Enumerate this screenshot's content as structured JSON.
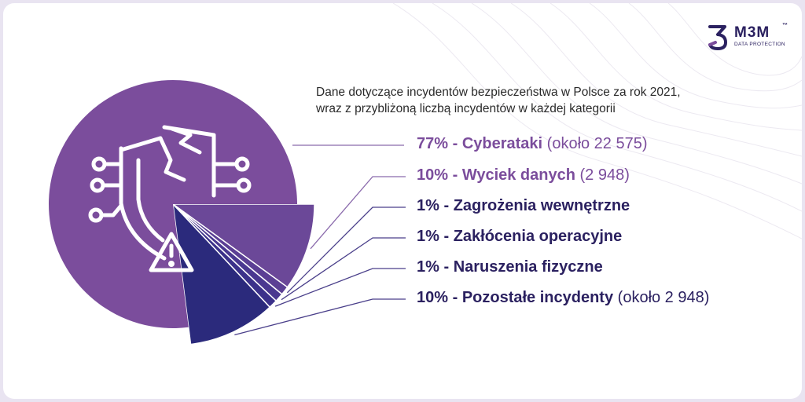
{
  "logo": {
    "name": "M3M",
    "trademark": "™",
    "tagline": "DATA PROTECTION"
  },
  "subtitle": {
    "line1": "Dane dotyczące incydentów bezpieczeństwa w Polsce za rok 2021,",
    "line2": "wraz z przybliżoną liczbą incydentów w każdej kategorii"
  },
  "icons": {
    "center": "shield-circuit-broken-icon",
    "warning": "warning-triangle-icon",
    "logo": "m3m-logo-icon"
  },
  "colors": {
    "background": "#ffffff",
    "frame": "#e9e4f1",
    "cyber": "#7b4d9c",
    "leak": "#6b4898",
    "internal": "#5b3f94",
    "operational": "#4a3890",
    "physical": "#3b318a",
    "other": "#2b2a7c",
    "text_light": "#7b4d9c",
    "text_dark": "#2b2160"
  },
  "chart_data": {
    "type": "pie",
    "title": "",
    "series": [
      {
        "name": "Cyberataki",
        "percent_label": "77%",
        "value": 77,
        "note": "(około 22 575)",
        "color": "#7b4d9c"
      },
      {
        "name": "Wyciek danych",
        "percent_label": "10%",
        "value": 10,
        "note": "(2 948)",
        "color": "#6b4898"
      },
      {
        "name": "Zagrożenia wewnętrzne",
        "percent_label": "1%",
        "value": 1,
        "note": "",
        "color": "#5b3f94"
      },
      {
        "name": "Zakłócenia operacyjne",
        "percent_label": "1%",
        "value": 1,
        "note": "",
        "color": "#4a3890"
      },
      {
        "name": "Naruszenia fizyczne",
        "percent_label": "1%",
        "value": 1,
        "note": "",
        "color": "#3b318a"
      },
      {
        "name": "Pozostałe incydenty",
        "percent_label": "10%",
        "value": 10,
        "note": "(około 2 948)",
        "color": "#2b2a7c"
      }
    ]
  }
}
